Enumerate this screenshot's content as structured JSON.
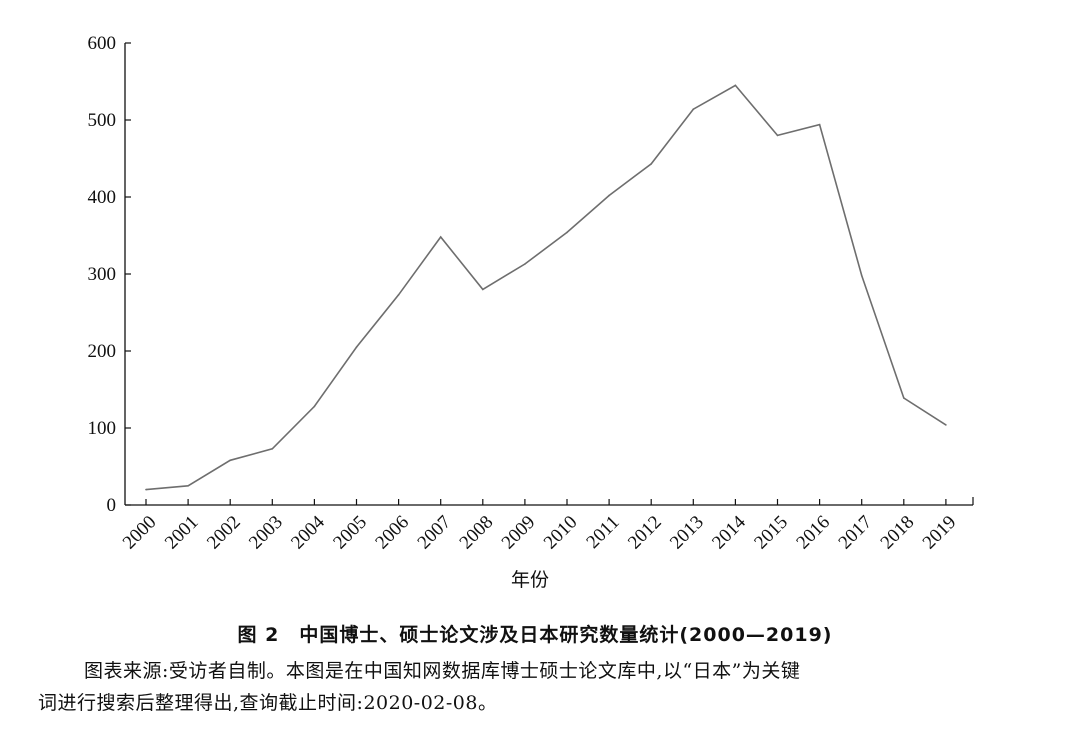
{
  "chart_data": {
    "type": "line",
    "title": "",
    "xlabel": "年份",
    "ylabel": "",
    "x": [
      "2000",
      "2001",
      "2002",
      "2003",
      "2004",
      "2005",
      "2006",
      "2007",
      "2008",
      "2009",
      "2010",
      "2011",
      "2012",
      "2013",
      "2014",
      "2015",
      "2016",
      "2017",
      "2018",
      "2019"
    ],
    "series": [
      {
        "name": "",
        "values": [
          20,
          25,
          58,
          73,
          128,
          205,
          273,
          348,
          280,
          313,
          354,
          402,
          443,
          514,
          545,
          480,
          494,
          298,
          139,
          104
        ]
      }
    ],
    "y_ticks": [
      0,
      100,
      200,
      300,
      400,
      500,
      600
    ],
    "ylim": [
      0,
      600
    ],
    "grid": false,
    "legend": "none",
    "line_color": "#6e6e6e"
  },
  "caption": {
    "title": "图 2　中国博士、硕士论文涉及日本研究数量统计(2000—2019)",
    "source_line1": "图表来源:受访者自制。本图是在中国知网数据库博士硕士论文库中,以“日本”为关键",
    "source_line2": "词进行搜索后整理得出,查询截止时间:2020-02-08。"
  }
}
